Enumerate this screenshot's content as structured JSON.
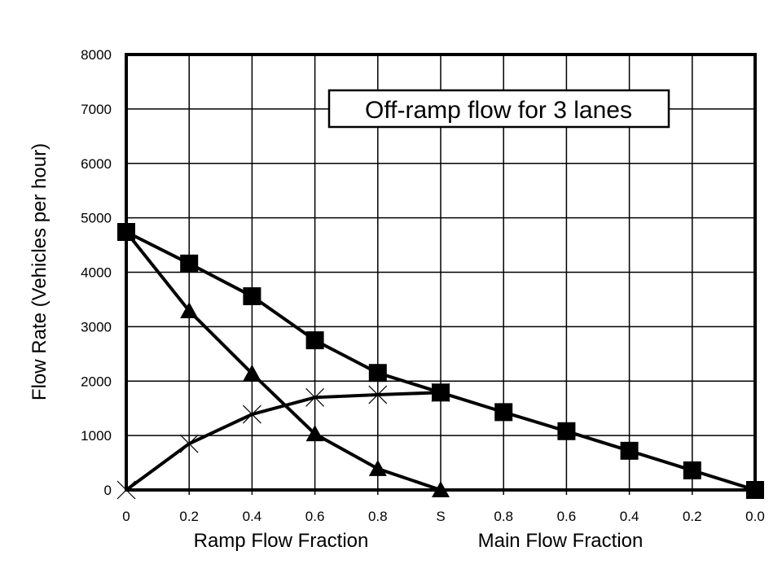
{
  "chart_data": {
    "type": "line",
    "title": "Off-ramp flow for 3 lanes",
    "ylabel": "Flow Rate (Vehicles per hour)",
    "xlabel_left": "Ramp Flow Fraction",
    "xlabel_right": "Main Flow Fraction",
    "ylim": [
      0,
      8000
    ],
    "yticks": [
      "0",
      "1000",
      "2000",
      "3000",
      "4000",
      "5000",
      "6000",
      "7000",
      "8000"
    ],
    "x_tick_labels": [
      "0",
      "0.2",
      "0.4",
      "0.6",
      "0.8",
      "S",
      "0.8",
      "0.6",
      "0.4",
      "0.2",
      "0.0"
    ],
    "grid": true,
    "series": [
      {
        "name": "square",
        "marker": "square",
        "values": [
          4740,
          4160,
          3560,
          2750,
          2150,
          1790,
          1430,
          1080,
          720,
          360,
          0
        ]
      },
      {
        "name": "triangle",
        "marker": "triangle",
        "values": [
          4740,
          3290,
          2140,
          1030,
          390,
          0,
          null,
          null,
          null,
          null,
          null
        ]
      },
      {
        "name": "cross",
        "marker": "cross",
        "values": [
          0,
          850,
          1390,
          1700,
          1750,
          1790,
          null,
          null,
          null,
          null,
          null
        ]
      }
    ]
  }
}
